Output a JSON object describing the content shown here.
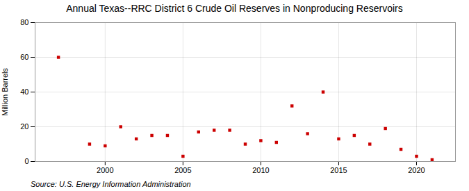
{
  "chart_data": {
    "type": "scatter",
    "title": "Annual Texas--RRC District 6 Crude Oil Reserves in Nonproducing Reservoirs",
    "ylabel": "Million Barrels",
    "source": "Source: U.S. Energy Information Administration",
    "x": [
      1997,
      1999,
      2000,
      2001,
      2002,
      2003,
      2004,
      2005,
      2006,
      2007,
      2008,
      2009,
      2010,
      2011,
      2012,
      2013,
      2014,
      2015,
      2016,
      2017,
      2018,
      2019,
      2020,
      2021
    ],
    "values": [
      60,
      10,
      9,
      20,
      13,
      15,
      15,
      3,
      17,
      18,
      18,
      10,
      12,
      11,
      32,
      16,
      40,
      13,
      15,
      10,
      19,
      7,
      3,
      1
    ],
    "color": "#cc0000",
    "marker": "square",
    "xlim": [
      1995.5,
      2022.5
    ],
    "ylim": [
      0,
      80
    ],
    "xticks": [
      2000,
      2005,
      2010,
      2015,
      2020
    ],
    "yticks": [
      0,
      20,
      40,
      60,
      80
    ],
    "grid": true
  }
}
